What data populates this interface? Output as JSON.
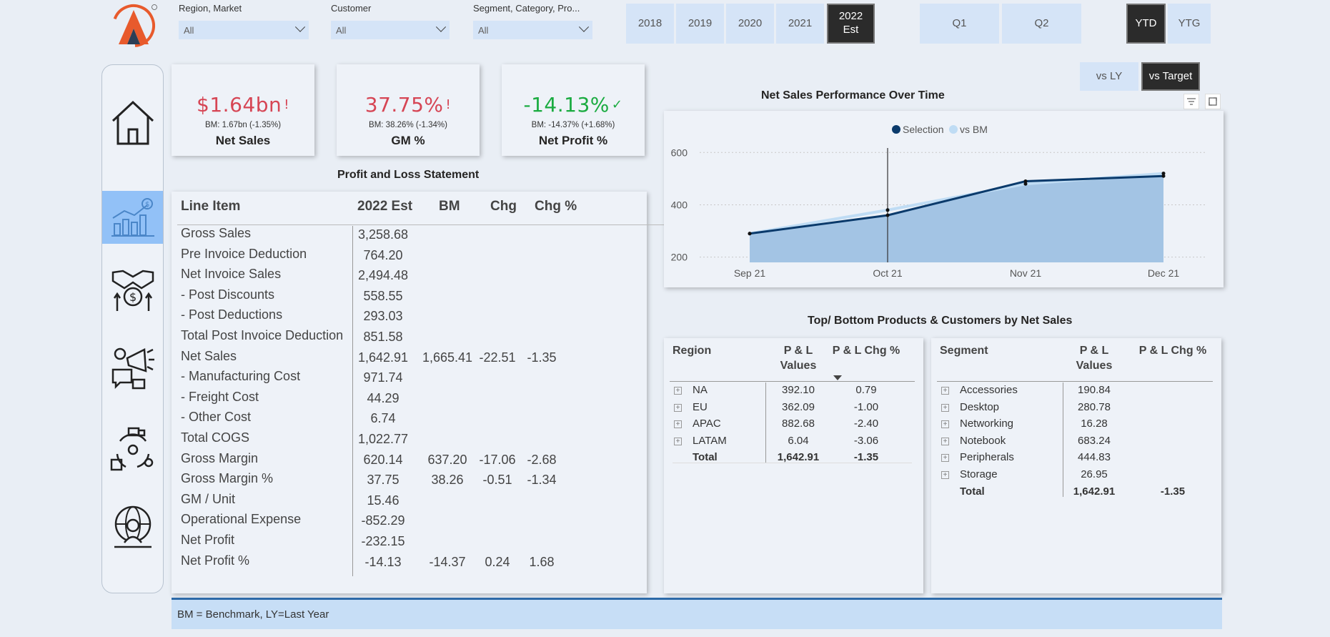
{
  "filters": [
    {
      "label": "Region, Market",
      "value": "All"
    },
    {
      "label": "Customer",
      "value": "All"
    },
    {
      "label": "Segment, Category, Pro...",
      "value": "All"
    }
  ],
  "years": [
    "2018",
    "2019",
    "2020",
    "2021",
    "2022\nEst"
  ],
  "selected_year_index": 4,
  "quarters": [
    "Q1",
    "Q2"
  ],
  "period": {
    "ytd": "YTD",
    "ytg": "YTG",
    "selected": "YTD"
  },
  "compare": {
    "vs_ly": "vs LY",
    "vs_target": "vs Target",
    "selected": "vs Target"
  },
  "nav_icons": [
    "home-icon",
    "finance-chart-icon",
    "handshake-money-icon",
    "marketing-icon",
    "supply-chain-icon",
    "executive-globe-icon"
  ],
  "active_nav_index": 1,
  "kpis": [
    {
      "value": "$1.64bn",
      "flag": "!",
      "bm": "BM: 1.67bn (-1.35%)",
      "name": "Net Sales",
      "status": "bad"
    },
    {
      "value": "37.75%",
      "flag": "!",
      "bm": "BM: 38.26% (-1.34%)",
      "name": "GM %",
      "status": "bad"
    },
    {
      "value": "-14.13%",
      "flag": "✓",
      "bm": "BM: -14.37% (+1.68%)",
      "name": "Net Profit %",
      "status": "good"
    }
  ],
  "pl": {
    "title": "Profit and Loss Statement",
    "headers": [
      "Line Item",
      "2022 Est",
      "BM",
      "Chg",
      "Chg %"
    ],
    "rows": [
      [
        "Gross Sales",
        "3,258.68",
        "",
        "",
        ""
      ],
      [
        "Pre Invoice Deduction",
        "764.20",
        "",
        "",
        ""
      ],
      [
        "Net Invoice Sales",
        "2,494.48",
        "",
        "",
        ""
      ],
      [
        "- Post Discounts",
        "558.55",
        "",
        "",
        ""
      ],
      [
        "- Post Deductions",
        "293.03",
        "",
        "",
        ""
      ],
      [
        "Total Post Invoice Deduction",
        "851.58",
        "",
        "",
        ""
      ],
      [
        "Net Sales",
        "1,642.91",
        "1,665.41",
        "-22.51",
        "-1.35"
      ],
      [
        "- Manufacturing Cost",
        "971.74",
        "",
        "",
        ""
      ],
      [
        "- Freight Cost",
        "44.29",
        "",
        "",
        ""
      ],
      [
        "- Other Cost",
        "6.74",
        "",
        "",
        ""
      ],
      [
        "Total COGS",
        "1,022.77",
        "",
        "",
        ""
      ],
      [
        "Gross Margin",
        "620.14",
        "637.20",
        "-17.06",
        "-2.68"
      ],
      [
        "Gross Margin %",
        "37.75",
        "38.26",
        "-0.51",
        "-1.34"
      ],
      [
        "GM / Unit",
        "15.46",
        "",
        "",
        ""
      ],
      [
        "Operational Expense",
        "-852.29",
        "",
        "",
        ""
      ],
      [
        "Net Profit",
        "-232.15",
        "",
        "",
        ""
      ],
      [
        "Net Profit %",
        "-14.13",
        "-14.37",
        "0.24",
        "1.68"
      ]
    ]
  },
  "chart_title": "Net Sales Performance Over Time",
  "chart_data": {
    "type": "area",
    "title": "Net Sales Performance Over Time",
    "categories": [
      "Sep 21",
      "Oct 21",
      "Nov 21",
      "Dec 21"
    ],
    "series": [
      {
        "name": "Selection",
        "values": [
          290,
          360,
          490,
          510
        ],
        "color": "#0a3a6b"
      },
      {
        "name": "vs BM",
        "values": [
          290,
          380,
          480,
          520
        ],
        "color": "#bfdcf4"
      }
    ],
    "yticks": [
      200,
      400,
      600
    ],
    "ylim": [
      180,
      650
    ],
    "grid": true,
    "legend": "top-center"
  },
  "top_bottom_title": "Top/ Bottom Products & Customers by Net Sales",
  "region_table": {
    "headers": [
      "Region",
      "P & L\nValues",
      "P & L Chg %"
    ],
    "rows": [
      [
        "NA",
        "392.10",
        "0.79"
      ],
      [
        "EU",
        "362.09",
        "-1.00"
      ],
      [
        "APAC",
        "882.68",
        "-2.40"
      ],
      [
        "LATAM",
        "6.04",
        "-3.06"
      ]
    ],
    "total": [
      "Total",
      "1,642.91",
      "-1.35"
    ]
  },
  "segment_table": {
    "headers": [
      "Segment",
      "P & L\nValues",
      "P & L Chg %"
    ],
    "rows": [
      [
        "Accessories",
        "190.84",
        ""
      ],
      [
        "Desktop",
        "280.78",
        ""
      ],
      [
        "Networking",
        "16.28",
        ""
      ],
      [
        "Notebook",
        "683.24",
        ""
      ],
      [
        "Peripherals",
        "444.83",
        ""
      ],
      [
        "Storage",
        "26.95",
        ""
      ]
    ],
    "total": [
      "Total",
      "1,642.91",
      "-1.35"
    ]
  },
  "footer": "BM = Benchmark, LY=Last Year",
  "colors": {
    "bad": "#d64554",
    "good": "#1aab40",
    "accent": "#92c1f7",
    "tile": "#d5e4f7",
    "selected": "#2b2b2b"
  }
}
